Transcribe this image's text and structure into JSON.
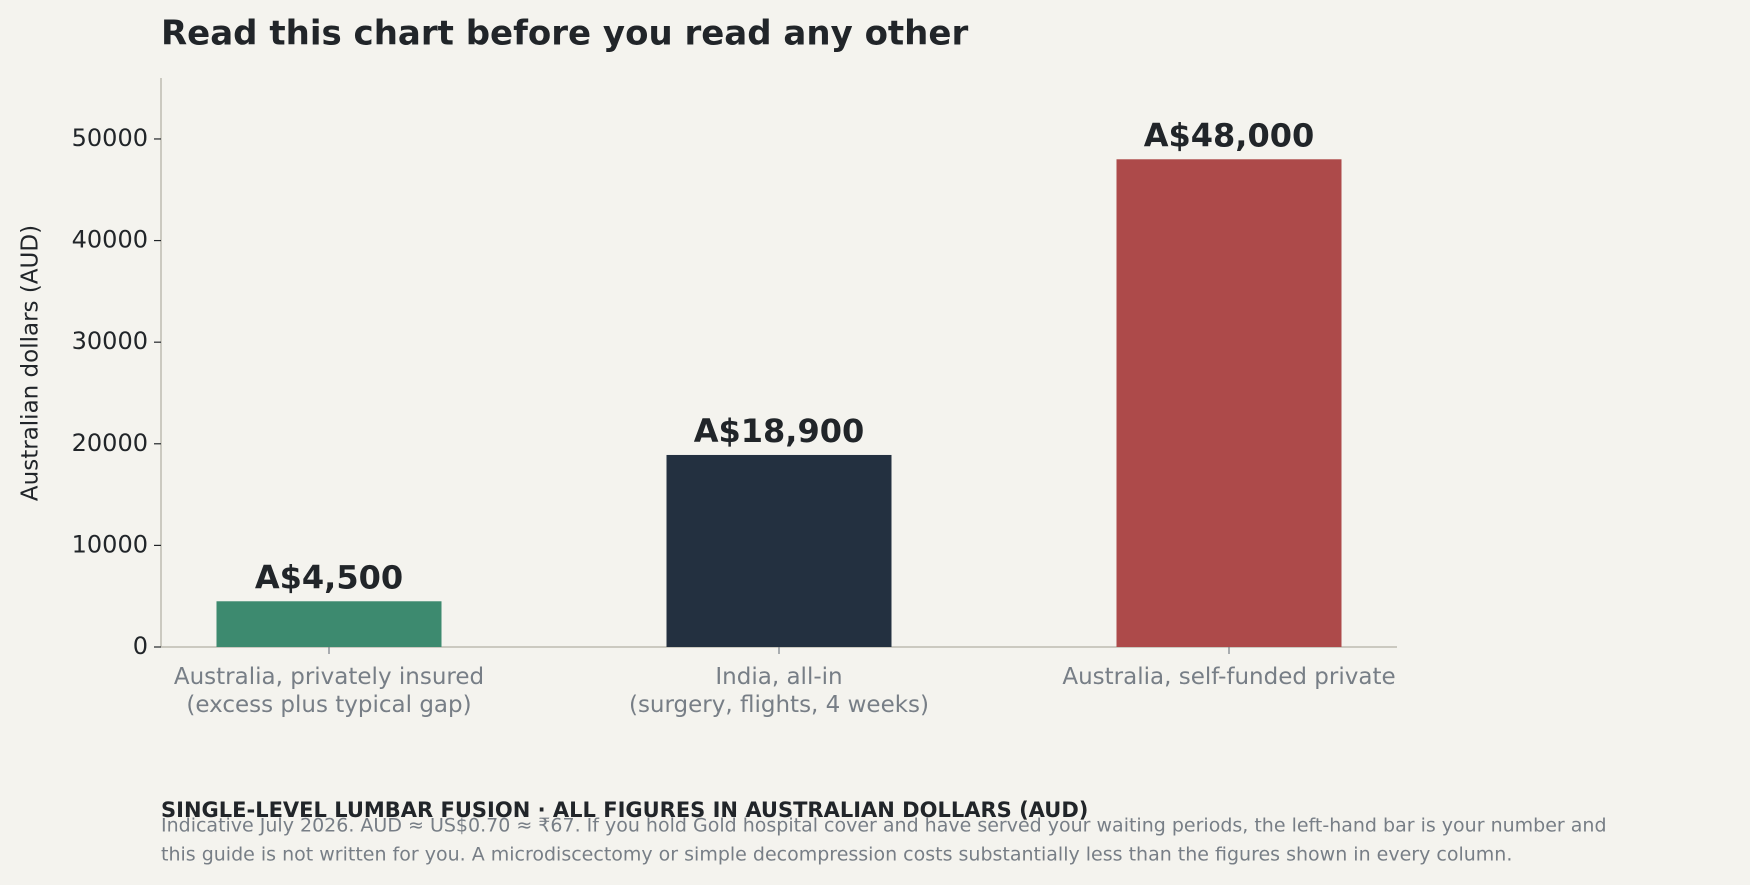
{
  "chart_data": {
    "type": "bar",
    "title": "Read this chart before you read any other",
    "ylabel": "Australian dollars (AUD)",
    "categories": [
      "Australia, privately insured\n(excess plus typical gap)",
      "India, all-in\n(surgery, flights, 4 weeks)",
      "Australia, self-funded private"
    ],
    "values": [
      4500,
      18900,
      48000
    ],
    "value_labels": [
      "A$4,500",
      "A$18,900",
      "A$48,000"
    ],
    "colors": [
      "#3d8a6f",
      "#233040",
      "#ad4a4a"
    ],
    "ylim": [
      0,
      56000
    ],
    "yticks": [
      0,
      10000,
      20000,
      30000,
      40000,
      50000
    ],
    "grid": false,
    "caption": "SINGLE-LEVEL LUMBAR FUSION · ALL FIGURES IN AUSTRALIAN DOLLARS (AUD)",
    "footnote": [
      "Indicative July 2026. AUD ≈ US$0.70 ≈ ₹67. If you hold Gold hospital cover and have served your waiting periods, the left-hand bar is your number and",
      "this guide is not written for you. A microdiscectomy or simple decompression costs substantially less than the figures shown in every column."
    ]
  }
}
